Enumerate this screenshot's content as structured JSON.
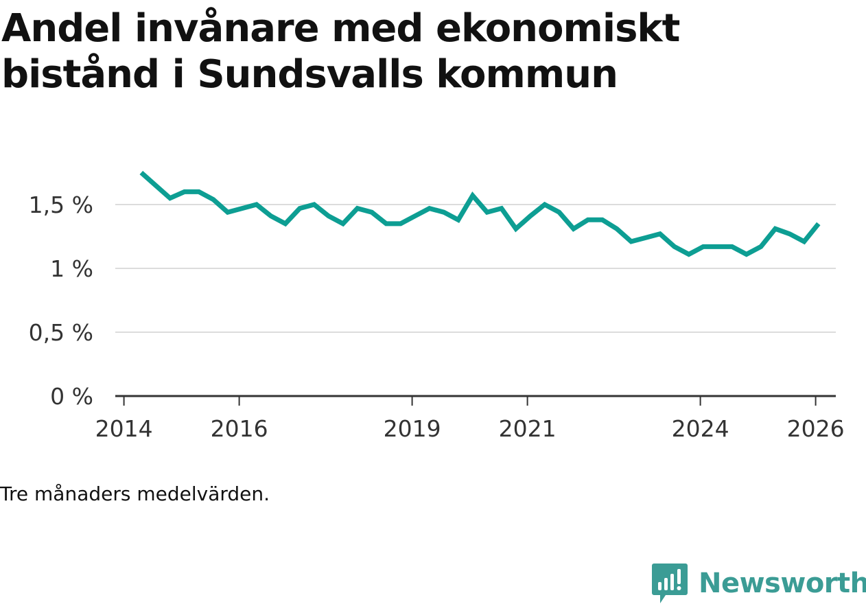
{
  "chart_data": {
    "type": "line",
    "title": "Andel invånare med ekonomiskt bistånd i Sundsvalls kommun",
    "note": "Tre månaders medelvärden.",
    "xlabel": "",
    "ylabel": "",
    "ylim": [
      0,
      2
    ],
    "xlim": [
      2013.85,
      2026.35
    ],
    "y_ticks": [
      {
        "value": 0,
        "label": "0 %"
      },
      {
        "value": 0.5,
        "label": "0,5 %"
      },
      {
        "value": 1,
        "label": "1 %"
      },
      {
        "value": 1.5,
        "label": "1,5 %"
      }
    ],
    "x_ticks": [
      {
        "value": 2014,
        "label": "2014"
      },
      {
        "value": 2016,
        "label": "2016"
      },
      {
        "value": 2019,
        "label": "2019"
      },
      {
        "value": 2021,
        "label": "2021"
      },
      {
        "value": 2024,
        "label": "2024"
      },
      {
        "value": 2026,
        "label": "2026"
      }
    ],
    "gridlines": true,
    "legend": "none",
    "series": [
      {
        "name": "Andel invånare med ekonomiskt bistånd",
        "color": "#0d9e93",
        "x": [
          2014.3,
          2014.55,
          2014.8,
          2015.05,
          2015.3,
          2015.55,
          2015.8,
          2016.05,
          2016.3,
          2016.55,
          2016.8,
          2017.05,
          2017.3,
          2017.55,
          2017.8,
          2018.05,
          2018.3,
          2018.55,
          2018.8,
          2019.05,
          2019.3,
          2019.55,
          2019.8,
          2020.05,
          2020.3,
          2020.55,
          2020.8,
          2021.05,
          2021.3,
          2021.55,
          2021.8,
          2022.05,
          2022.3,
          2022.55,
          2022.8,
          2023.05,
          2023.3,
          2023.55,
          2023.8,
          2024.05,
          2024.3,
          2024.55,
          2024.8,
          2025.05,
          2025.3,
          2025.55,
          2025.8,
          2026.05
        ],
        "values": [
          1.75,
          1.65,
          1.55,
          1.6,
          1.6,
          1.54,
          1.44,
          1.47,
          1.5,
          1.41,
          1.35,
          1.47,
          1.5,
          1.41,
          1.35,
          1.47,
          1.44,
          1.35,
          1.35,
          1.41,
          1.47,
          1.44,
          1.38,
          1.57,
          1.44,
          1.47,
          1.31,
          1.41,
          1.5,
          1.44,
          1.31,
          1.38,
          1.38,
          1.31,
          1.21,
          1.24,
          1.27,
          1.17,
          1.11,
          1.17,
          1.17,
          1.17,
          1.11,
          1.17,
          1.31,
          1.27,
          1.21,
          1.35
        ]
      }
    ]
  },
  "brand": {
    "name": "Newsworthy",
    "icon": "newsworthy-logo-icon",
    "color": "#3b9c95"
  },
  "colors": {
    "grid": "#dcdcdc",
    "axis": "#333333",
    "line": "#0d9e93"
  }
}
